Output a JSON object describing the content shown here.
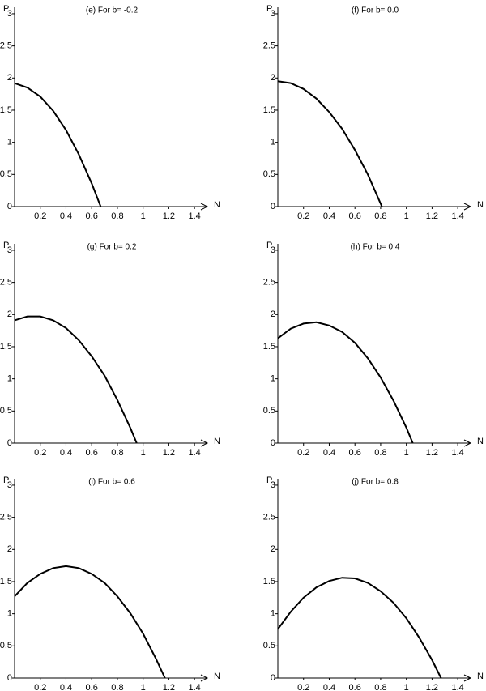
{
  "chart_data": [
    {
      "type": "line",
      "title": "(e) For   b= -0.2",
      "x_label": "N",
      "y_label": "P",
      "x": [
        0,
        0.1,
        0.2,
        0.3,
        0.4,
        0.5,
        0.6,
        0.67
      ],
      "series": [
        {
          "color": "#000000",
          "values": [
            1.92,
            1.85,
            1.71,
            1.49,
            1.19,
            0.81,
            0.36,
            0
          ]
        }
      ],
      "xlim": [
        0,
        1.5
      ],
      "ylim": [
        0,
        3.1
      ],
      "xticks": [
        0.2,
        0.4,
        0.6,
        0.8,
        1,
        1.2,
        1.4
      ],
      "yticks": [
        0,
        0.5,
        1,
        1.5,
        2,
        2.5,
        3
      ]
    },
    {
      "type": "line",
      "title": "(f) For   b= 0.0",
      "x_label": "N",
      "y_label": "P",
      "x": [
        0,
        0.1,
        0.2,
        0.3,
        0.4,
        0.5,
        0.6,
        0.7,
        0.81
      ],
      "series": [
        {
          "color": "#000000",
          "values": [
            1.95,
            1.92,
            1.83,
            1.68,
            1.47,
            1.21,
            0.88,
            0.5,
            0
          ]
        }
      ],
      "xlim": [
        0,
        1.5
      ],
      "ylim": [
        0,
        3.1
      ],
      "xticks": [
        0.2,
        0.4,
        0.6,
        0.8,
        1,
        1.2,
        1.4
      ],
      "yticks": [
        0,
        0.5,
        1,
        1.5,
        2,
        2.5,
        3
      ]
    },
    {
      "type": "line",
      "title": "(g) For   b= 0.2",
      "x_label": "N",
      "y_label": "P",
      "x": [
        0,
        0.1,
        0.2,
        0.3,
        0.4,
        0.5,
        0.6,
        0.7,
        0.8,
        0.9,
        0.95
      ],
      "series": [
        {
          "color": "#000000",
          "values": [
            1.91,
            1.97,
            1.97,
            1.91,
            1.79,
            1.6,
            1.35,
            1.05,
            0.67,
            0.24,
            0
          ]
        }
      ],
      "xlim": [
        0,
        1.5
      ],
      "ylim": [
        0,
        3.1
      ],
      "xticks": [
        0.2,
        0.4,
        0.6,
        0.8,
        1,
        1.2,
        1.4
      ],
      "yticks": [
        0,
        0.5,
        1,
        1.5,
        2,
        2.5,
        3
      ]
    },
    {
      "type": "line",
      "title": "(h) For   b= 0.4",
      "x_label": "N",
      "y_label": "P",
      "x": [
        0,
        0.1,
        0.2,
        0.3,
        0.4,
        0.5,
        0.6,
        0.7,
        0.8,
        0.9,
        1.0,
        1.05
      ],
      "series": [
        {
          "color": "#000000",
          "values": [
            1.63,
            1.78,
            1.86,
            1.88,
            1.83,
            1.73,
            1.56,
            1.32,
            1.02,
            0.66,
            0.24,
            0
          ]
        }
      ],
      "xlim": [
        0,
        1.5
      ],
      "ylim": [
        0,
        3.1
      ],
      "xticks": [
        0.2,
        0.4,
        0.6,
        0.8,
        1,
        1.2,
        1.4
      ],
      "yticks": [
        0,
        0.5,
        1,
        1.5,
        2,
        2.5,
        3
      ]
    },
    {
      "type": "line",
      "title": "(i) For   b= 0.6",
      "x_label": "N",
      "y_label": "P",
      "x": [
        0,
        0.1,
        0.2,
        0.3,
        0.4,
        0.5,
        0.6,
        0.7,
        0.8,
        0.9,
        1.0,
        1.1,
        1.17
      ],
      "series": [
        {
          "color": "#000000",
          "values": [
            1.27,
            1.48,
            1.62,
            1.71,
            1.74,
            1.71,
            1.62,
            1.48,
            1.27,
            1.01,
            0.69,
            0.3,
            0
          ]
        }
      ],
      "xlim": [
        0,
        1.5
      ],
      "ylim": [
        0,
        3.1
      ],
      "xticks": [
        0.2,
        0.4,
        0.6,
        0.8,
        1,
        1.2,
        1.4
      ],
      "yticks": [
        0,
        0.5,
        1,
        1.5,
        2,
        2.5,
        3
      ]
    },
    {
      "type": "line",
      "title": "(j) For   b= 0.8",
      "x_label": "N",
      "y_label": "P",
      "x": [
        0,
        0.1,
        0.2,
        0.3,
        0.4,
        0.5,
        0.6,
        0.7,
        0.8,
        0.9,
        1.0,
        1.1,
        1.2,
        1.27
      ],
      "series": [
        {
          "color": "#000000",
          "values": [
            0.76,
            1.03,
            1.25,
            1.41,
            1.51,
            1.56,
            1.55,
            1.48,
            1.35,
            1.17,
            0.93,
            0.63,
            0.28,
            0
          ]
        }
      ],
      "xlim": [
        0,
        1.5
      ],
      "ylim": [
        0,
        3.1
      ],
      "xticks": [
        0.2,
        0.4,
        0.6,
        0.8,
        1,
        1.2,
        1.4
      ],
      "yticks": [
        0,
        0.5,
        1,
        1.5,
        2,
        2.5,
        3
      ]
    }
  ]
}
